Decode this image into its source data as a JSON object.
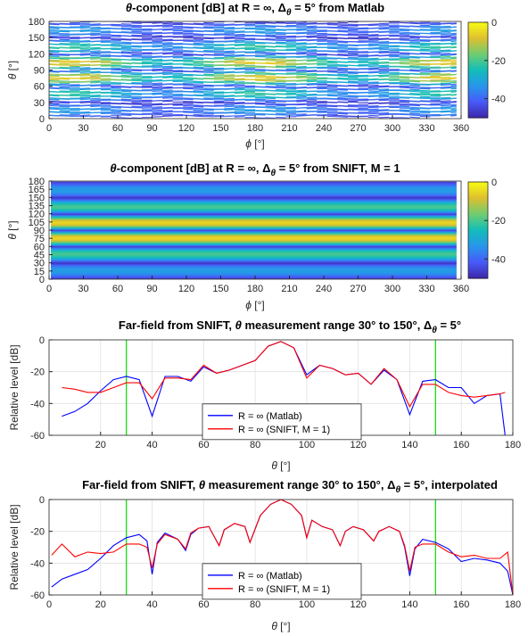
{
  "chart_data": [
    {
      "type": "heatmap",
      "title": "θ-component [dB] at R = ∞, Δθ = 5° from Matlab",
      "title_parts": [
        "θ",
        "-component [dB] at R = ∞, Δ",
        "θ",
        " = 5° from Matlab"
      ],
      "xlabel_sym": "ϕ",
      "xlabel_unit": " [°]",
      "ylabel_sym": "θ",
      "ylabel_unit": " [°]",
      "xlim": [
        0,
        360
      ],
      "ylim": [
        0,
        180
      ],
      "xticks": [
        0,
        30,
        60,
        90,
        120,
        150,
        180,
        210,
        240,
        270,
        300,
        330,
        360
      ],
      "yticks": [
        0,
        30,
        60,
        90,
        120,
        150,
        180
      ],
      "colorbar": {
        "ticks": [
          0,
          -20,
          -40
        ],
        "range": [
          -50,
          0
        ],
        "colormap": "parula"
      },
      "pattern": "contour lines varying with phi, maxima at theta 90 near phi 15, 180, 350",
      "grid": false
    },
    {
      "type": "heatmap",
      "title": "θ-component [dB] at R = ∞, Δθ = 5° from SNIFT, M = 1",
      "title_parts": [
        "θ",
        "-component [dB] at R = ∞, Δ",
        "θ",
        " = 5° from SNIFT, M = 1"
      ],
      "xlabel_sym": "ϕ",
      "xlabel_unit": " [°]",
      "ylabel_sym": "θ",
      "ylabel_unit": " [°]",
      "xlim": [
        0,
        360
      ],
      "ylim": [
        0,
        180
      ],
      "xticks": [
        0,
        30,
        60,
        90,
        120,
        150,
        180,
        210,
        240,
        270,
        300,
        330,
        360
      ],
      "yticks": [
        0,
        15,
        30,
        45,
        60,
        75,
        90,
        105,
        120,
        135,
        150,
        165,
        180
      ],
      "colorbar": {
        "ticks": [
          0,
          -20,
          -40
        ],
        "range": [
          -50,
          0
        ],
        "colormap": "parula"
      },
      "pattern": "horizontal bands independent of phi, maximum at theta 90",
      "grid": false
    },
    {
      "type": "line",
      "title": "Far-field from SNIFT, θ measurement range 30° to 150°, Δθ = 5°",
      "title_parts": [
        "Far-field from SNIFT, ",
        "θ",
        " measurement range 30° to 150°, Δ",
        "θ",
        " = 5°"
      ],
      "xlabel_sym": "θ",
      "xlabel_unit": " [°]",
      "ylabel": "Relative level [dB]",
      "xlim": [
        0,
        180
      ],
      "ylim": [
        -60,
        0
      ],
      "xticks": [
        20,
        40,
        60,
        80,
        100,
        120,
        140,
        160,
        180
      ],
      "yticks": [
        0,
        -20,
        -40,
        -60
      ],
      "grid": true,
      "vlines": [
        30,
        150
      ],
      "legend": {
        "position": "lower-center",
        "entries": [
          "R = ∞ (Matlab)",
          "R = ∞ (SNIFT, M = 1)"
        ]
      },
      "x": [
        5,
        10,
        15,
        20,
        25,
        30,
        35,
        40,
        45,
        50,
        55,
        60,
        65,
        70,
        75,
        80,
        85,
        90,
        95,
        100,
        105,
        110,
        115,
        120,
        125,
        130,
        135,
        140,
        145,
        150,
        155,
        160,
        165,
        170,
        175,
        177
      ],
      "series": [
        {
          "name": "R = ∞ (Matlab)",
          "color": "#0000ff",
          "values": [
            -48,
            -45,
            -40,
            -32,
            -25,
            -23,
            -25,
            -48,
            -23,
            -23,
            -26,
            -17,
            -21,
            -19,
            -16,
            -13,
            -4,
            -1,
            -5,
            -22,
            -16,
            -18,
            -22,
            -21,
            -28,
            -19,
            -25,
            -47,
            -26,
            -25,
            -30,
            -30,
            -40,
            -35,
            -34,
            -60
          ]
        },
        {
          "name": "R = ∞ (SNIFT, M = 1)",
          "color": "#ff0000",
          "values": [
            -30,
            -31,
            -33,
            -33,
            -30,
            -27,
            -27,
            -37,
            -24,
            -24,
            -25,
            -16,
            -21,
            -19,
            -16,
            -13,
            -4,
            -1,
            -5,
            -24,
            -16,
            -18,
            -22,
            -21,
            -28,
            -18,
            -25,
            -42,
            -28,
            -28,
            -33,
            -35,
            -36,
            -35,
            -34,
            -33
          ]
        }
      ]
    },
    {
      "type": "line",
      "title": "Far-field from SNIFT, θ measurement range 30° to 150°, Δθ = 5°, interpolated",
      "title_parts": [
        "Far-field from SNIFT, ",
        "θ",
        " measurement range 30° to 150°, Δ",
        "θ",
        " = 5°, interpolated"
      ],
      "xlabel_sym": "θ",
      "xlabel_unit": " [°]",
      "ylabel": "Relative level [dB]",
      "xlim": [
        0,
        180
      ],
      "ylim": [
        -60,
        0
      ],
      "xticks": [
        0,
        20,
        40,
        60,
        80,
        100,
        120,
        140,
        160,
        180
      ],
      "yticks": [
        0,
        -20,
        -40,
        -60
      ],
      "grid": true,
      "vlines": [
        30,
        150
      ],
      "legend": {
        "position": "lower-center",
        "entries": [
          "R = ∞ (Matlab)",
          "R = ∞ (SNIFT, M = 1)"
        ]
      },
      "x": [
        1,
        5,
        10,
        15,
        20,
        25,
        30,
        35,
        38,
        40,
        42,
        45,
        50,
        53,
        55,
        58,
        62,
        66,
        68,
        72,
        76,
        78,
        82,
        86,
        90,
        94,
        98,
        100,
        102,
        106,
        110,
        113,
        115,
        118,
        122,
        126,
        128,
        132,
        136,
        138,
        140,
        142,
        145,
        150,
        155,
        160,
        165,
        170,
        175,
        178,
        180
      ],
      "series": [
        {
          "name": "R = ∞ (Matlab)",
          "color": "#0000ff",
          "values": [
            -55,
            -50,
            -47,
            -44,
            -37,
            -29,
            -24,
            -22,
            -26,
            -47,
            -27,
            -21,
            -25,
            -32,
            -22,
            -18,
            -17,
            -29,
            -19,
            -15,
            -17,
            -27,
            -10,
            -3,
            0,
            -3,
            -10,
            -24,
            -13,
            -17,
            -19,
            -29,
            -20,
            -17,
            -19,
            -26,
            -20,
            -17,
            -20,
            -30,
            -48,
            -31,
            -25,
            -27,
            -31,
            -39,
            -37,
            -38,
            -40,
            -45,
            -60
          ]
        },
        {
          "name": "R = ∞ (SNIFT, M = 1)",
          "color": "#ff0000",
          "values": [
            -35,
            -28,
            -36,
            -33,
            -34,
            -33,
            -28,
            -28,
            -30,
            -43,
            -28,
            -22,
            -25,
            -31,
            -21,
            -18,
            -17,
            -29,
            -19,
            -15,
            -17,
            -27,
            -10,
            -3,
            0,
            -3,
            -10,
            -24,
            -13,
            -17,
            -19,
            -29,
            -20,
            -17,
            -19,
            -26,
            -20,
            -17,
            -20,
            -29,
            -45,
            -30,
            -28,
            -28,
            -33,
            -36,
            -35,
            -37,
            -37,
            -33,
            -60
          ]
        }
      ]
    }
  ]
}
